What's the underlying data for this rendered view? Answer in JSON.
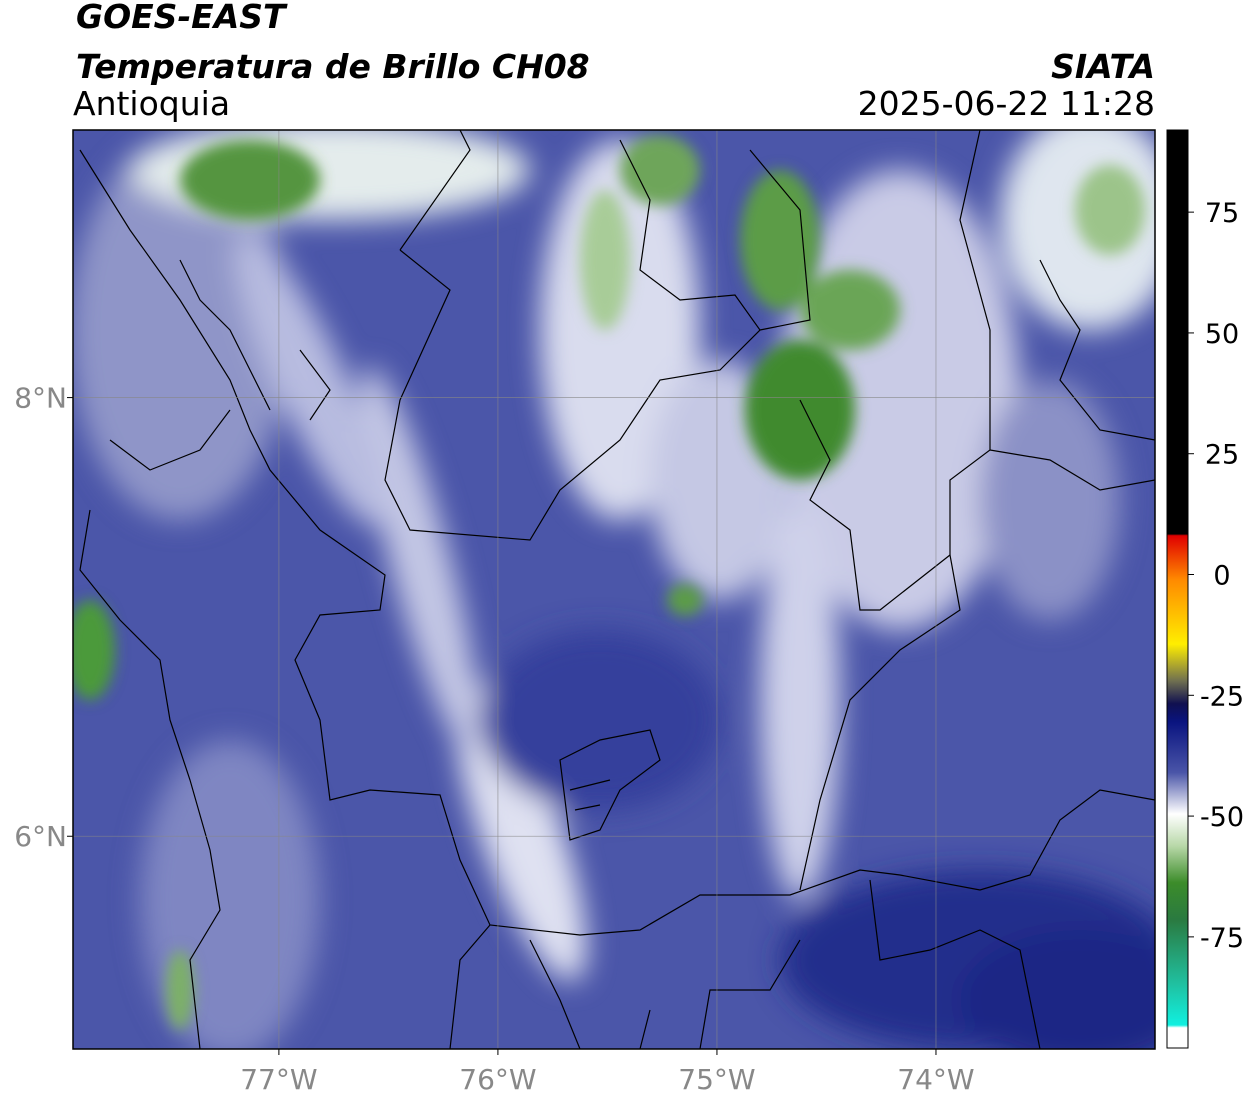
{
  "header": {
    "title": "GOES-EAST",
    "subtitle": "Temperatura de Brillo CH08",
    "region": "Antioquia",
    "source": "SIATA",
    "datetime": "2025-06-22 11:28"
  },
  "chart_data": {
    "type": "map",
    "xlim": [
      -77.94,
      -73.0
    ],
    "ylim": [
      5.03,
      9.22
    ],
    "xticks": [
      {
        "value": -77,
        "label": "77°W"
      },
      {
        "value": -76,
        "label": "76°W"
      },
      {
        "value": -75,
        "label": "75°W"
      },
      {
        "value": -74,
        "label": "74°W"
      }
    ],
    "yticks": [
      {
        "value": 6,
        "label": "6°N"
      },
      {
        "value": 8,
        "label": "8°N"
      }
    ],
    "grid": true,
    "colorbar": {
      "lim": [
        -98,
        92
      ],
      "ticks": [
        -75,
        -50,
        -25,
        0,
        25,
        50,
        75
      ]
    }
  }
}
